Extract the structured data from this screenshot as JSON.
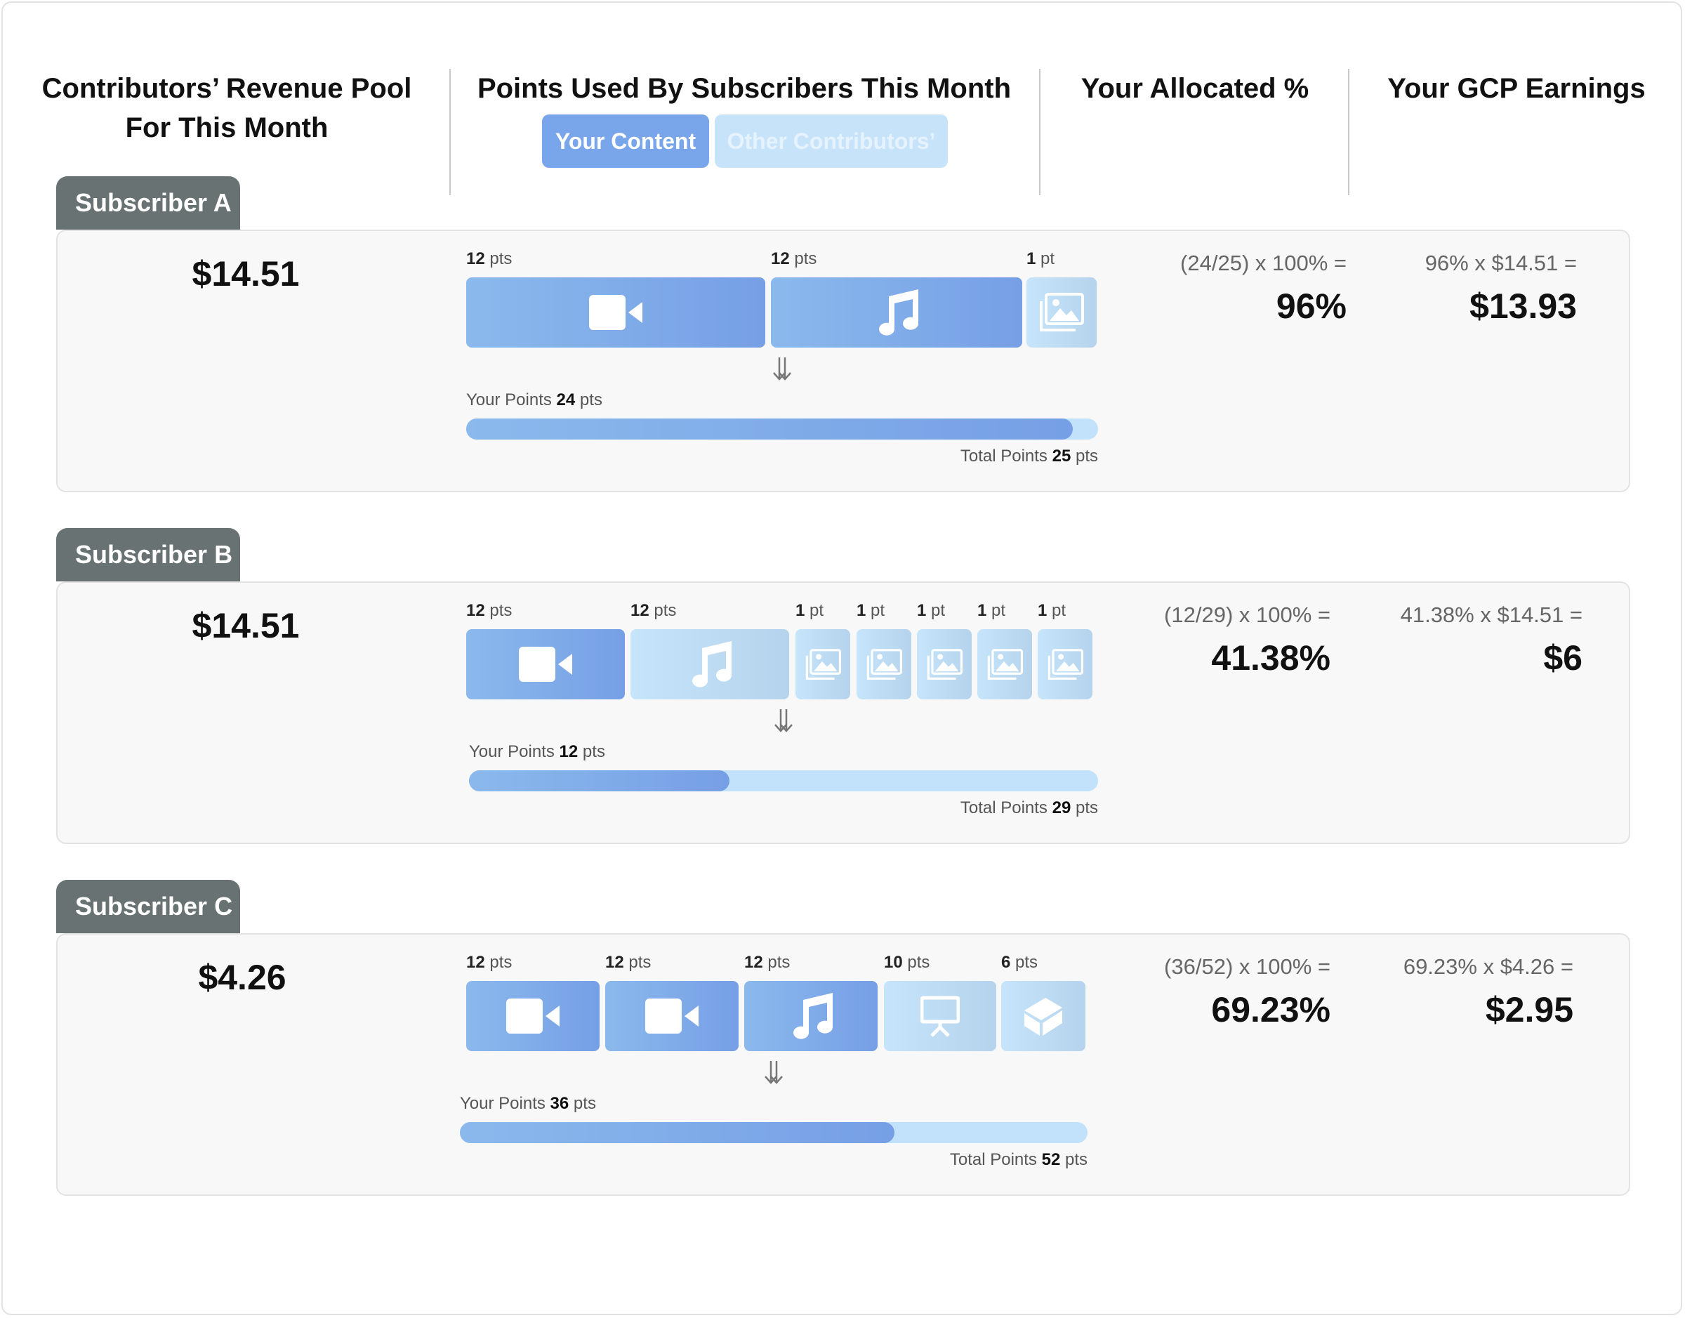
{
  "header": {
    "pool_title_line1": "Contributors’ Revenue Pool",
    "pool_title_line2": "For This Month",
    "points_title": "Points Used By Subscribers This Month",
    "toggle_your_content": "Your Content",
    "toggle_other": "Other Contributors’",
    "allocated_title": "Your Allocated %",
    "earnings_title": "Your GCP Earnings"
  },
  "colors": {
    "your_content": "#79a6ea",
    "other_contributors": "#c6e3fa",
    "subscriber_tab": "#687272"
  },
  "labels": {
    "your_points": "Your Points",
    "total_points": "Total Points",
    "pts_unit": "pts"
  },
  "subscribers": [
    {
      "name": "Subscriber A",
      "pool": "$14.51",
      "items": [
        {
          "pts": "12",
          "unit": "pts",
          "icon": "video-icon",
          "mine": true
        },
        {
          "pts": "12",
          "unit": "pts",
          "icon": "music-icon",
          "mine": true
        },
        {
          "pts": "1",
          "unit": "pt",
          "icon": "image-gallery-icon",
          "mine": false
        }
      ],
      "your_points": "24",
      "total_points": "25",
      "your_fraction": 0.96,
      "formula": "(24/25) x 100% =",
      "allocated": "96%",
      "earn_formula": "96% x $14.51 =",
      "earnings": "$13.93"
    },
    {
      "name": "Subscriber B",
      "pool": "$14.51",
      "items": [
        {
          "pts": "12",
          "unit": "pts",
          "icon": "video-icon",
          "mine": true
        },
        {
          "pts": "12",
          "unit": "pts",
          "icon": "music-icon",
          "mine": false
        },
        {
          "pts": "1",
          "unit": "pt",
          "icon": "image-gallery-icon",
          "mine": false
        },
        {
          "pts": "1",
          "unit": "pt",
          "icon": "image-gallery-icon",
          "mine": false
        },
        {
          "pts": "1",
          "unit": "pt",
          "icon": "image-gallery-icon",
          "mine": false
        },
        {
          "pts": "1",
          "unit": "pt",
          "icon": "image-gallery-icon",
          "mine": false
        },
        {
          "pts": "1",
          "unit": "pt",
          "icon": "image-gallery-icon",
          "mine": false
        }
      ],
      "your_points": "12",
      "total_points": "29",
      "your_fraction": 0.4138,
      "formula": "(12/29) x 100% =",
      "allocated": "41.38%",
      "earn_formula": "41.38% x $14.51 =",
      "earnings": "$6"
    },
    {
      "name": "Subscriber C",
      "pool": "$4.26",
      "items": [
        {
          "pts": "12",
          "unit": "pts",
          "icon": "video-icon",
          "mine": true
        },
        {
          "pts": "12",
          "unit": "pts",
          "icon": "video-icon",
          "mine": true
        },
        {
          "pts": "12",
          "unit": "pts",
          "icon": "music-icon",
          "mine": true
        },
        {
          "pts": "10",
          "unit": "pts",
          "icon": "presentation-icon",
          "mine": false
        },
        {
          "pts": "6",
          "unit": "pts",
          "icon": "3d-cube-icon",
          "mine": false
        }
      ],
      "your_points": "36",
      "total_points": "52",
      "your_fraction": 0.6923,
      "formula": "(36/52) x 100% =",
      "allocated": "69.23%",
      "earn_formula": "69.23% x $4.26 =",
      "earnings": "$2.95"
    }
  ]
}
